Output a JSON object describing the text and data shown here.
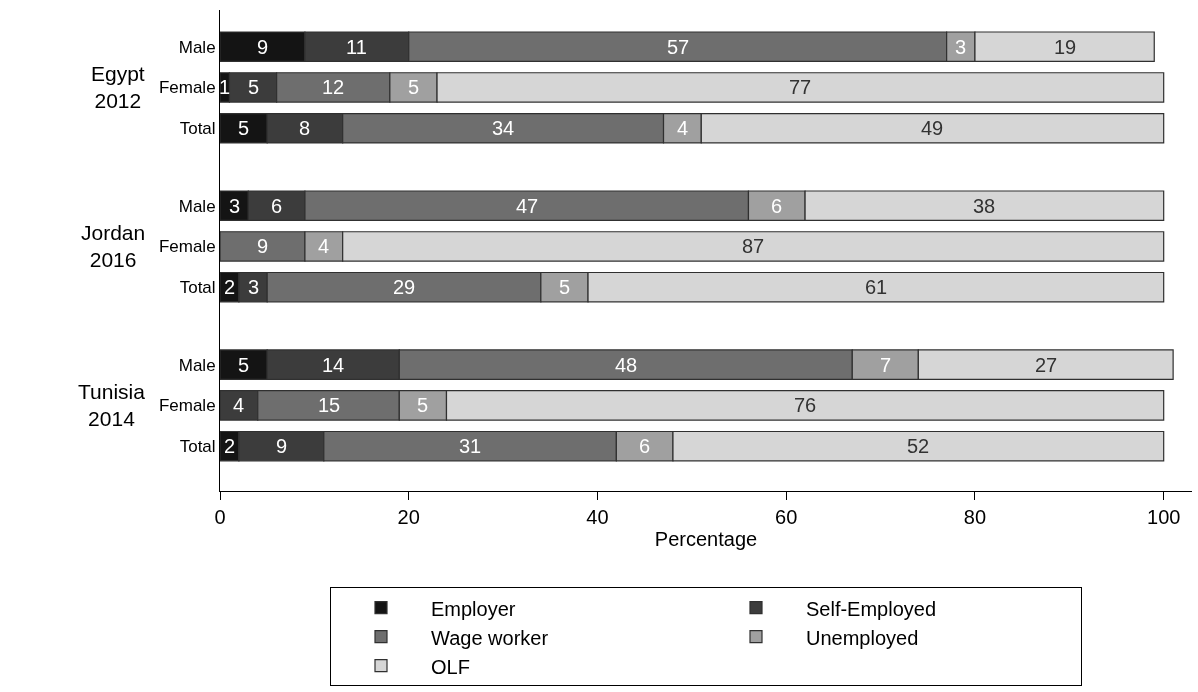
{
  "chart_data": {
    "type": "bar",
    "orientation": "horizontal",
    "stacked": true,
    "categories": [
      "Male",
      "Female",
      "Total",
      "Male",
      "Female",
      "Total",
      "Male",
      "Female",
      "Total"
    ],
    "series": [
      {
        "name": "Employer",
        "color": "#141414",
        "values": [
          9,
          1,
          5,
          3,
          0,
          2,
          5,
          0,
          2
        ],
        "value_labels": [
          "9",
          "1",
          "5",
          "3",
          null,
          "2",
          "5",
          null,
          "2"
        ]
      },
      {
        "name": "Self-Employed",
        "color": "#3c3c3c",
        "values": [
          11,
          5,
          8,
          6,
          0,
          3,
          14,
          4,
          9
        ],
        "value_labels": [
          "11",
          "5",
          "8",
          "6",
          null,
          "3",
          "14",
          "4",
          "9"
        ]
      },
      {
        "name": "Wage worker",
        "color": "#6e6e6e",
        "values": [
          57,
          12,
          34,
          47,
          9,
          29,
          48,
          15,
          31
        ],
        "value_labels": [
          "57",
          "12",
          "34",
          "47",
          "9",
          "29",
          "48",
          "15",
          "31"
        ]
      },
      {
        "name": "Unemployed",
        "color": "#a0a0a0",
        "values": [
          3,
          5,
          4,
          6,
          4,
          5,
          7,
          5,
          6
        ],
        "value_labels": [
          "3",
          "5",
          "4",
          "6",
          "4",
          "5",
          "7",
          "5",
          "6"
        ]
      },
      {
        "name": "OLF",
        "color": "#d6d6d6",
        "values": [
          19,
          77,
          49,
          38,
          87,
          61,
          27,
          76,
          52
        ],
        "value_labels": [
          "19",
          "77",
          "49",
          "38",
          "87",
          "61",
          "27",
          "76",
          "52"
        ]
      }
    ],
    "annotations": [
      "Egypt\n2012",
      "Jordan\n2016",
      "Tunisia\n2014"
    ],
    "xlabel": "Percentage",
    "xlim": [
      0,
      103
    ],
    "xticks": [
      0,
      20,
      40,
      60,
      80,
      100
    ],
    "legend": "bottom"
  }
}
